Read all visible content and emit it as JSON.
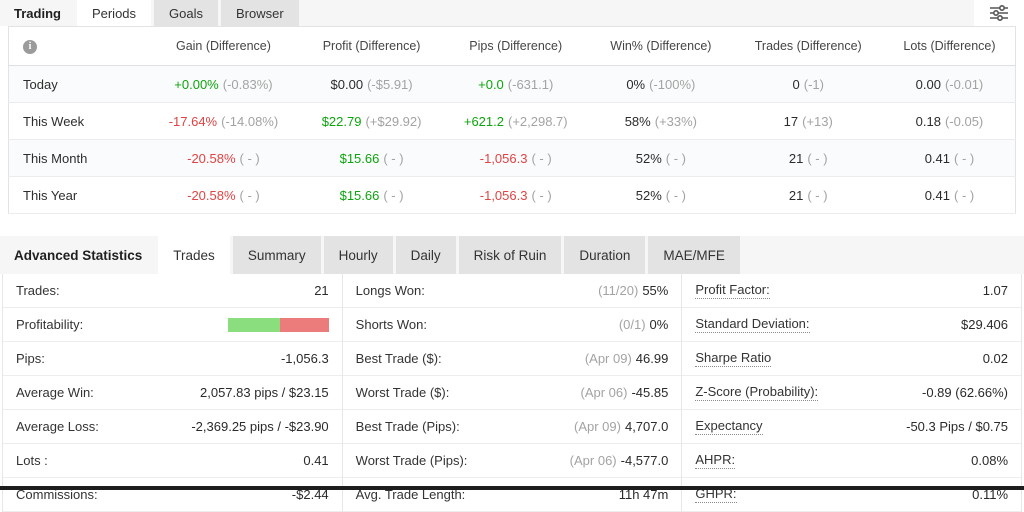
{
  "colors": {
    "green": "#0da50d",
    "red": "#e04343",
    "muted": "#a3a3a3",
    "bar_green": "#8ade7e",
    "bar_red": "#ec7b7b"
  },
  "trading": {
    "title": "Trading",
    "tabs": [
      {
        "label": "Periods",
        "active": true
      },
      {
        "label": "Goals",
        "active": false
      },
      {
        "label": "Browser",
        "active": false
      }
    ],
    "filter_icon": "sliders-icon",
    "table": {
      "info_glyph": "i",
      "headers": [
        "Gain (Difference)",
        "Profit (Difference)",
        "Pips (Difference)",
        "Win% (Difference)",
        "Trades (Difference)",
        "Lots (Difference)"
      ],
      "rows": [
        {
          "label": "Today",
          "cells": [
            {
              "main": "+0.00%",
              "color": "green",
              "diff": "(-0.83%)"
            },
            {
              "main": "$0.00",
              "color": "dark",
              "diff": "(-$5.91)"
            },
            {
              "main": "+0.0",
              "color": "green",
              "diff": "(-631.1)"
            },
            {
              "main": "0%",
              "color": "dark",
              "diff": "(-100%)"
            },
            {
              "main": "0",
              "color": "dark",
              "diff": "(-1)"
            },
            {
              "main": "0.00",
              "color": "dark",
              "diff": "(-0.01)"
            }
          ]
        },
        {
          "label": "This Week",
          "cells": [
            {
              "main": "-17.64%",
              "color": "red",
              "diff": "(-14.08%)"
            },
            {
              "main": "$22.79",
              "color": "green",
              "diff": "(+$29.92)"
            },
            {
              "main": "+621.2",
              "color": "green",
              "diff": "(+2,298.7)"
            },
            {
              "main": "58%",
              "color": "dark",
              "diff": "(+33%)"
            },
            {
              "main": "17",
              "color": "dark",
              "diff": "(+13)"
            },
            {
              "main": "0.18",
              "color": "dark",
              "diff": "(-0.05)"
            }
          ]
        },
        {
          "label": "This Month",
          "cells": [
            {
              "main": "-20.58%",
              "color": "red",
              "diff": "( - )"
            },
            {
              "main": "$15.66",
              "color": "green",
              "diff": "( - )"
            },
            {
              "main": "-1,056.3",
              "color": "red",
              "diff": "( - )"
            },
            {
              "main": "52%",
              "color": "dark",
              "diff": "( - )"
            },
            {
              "main": "21",
              "color": "dark",
              "diff": "( - )"
            },
            {
              "main": "0.41",
              "color": "dark",
              "diff": "( - )"
            }
          ]
        },
        {
          "label": "This Year",
          "cells": [
            {
              "main": "-20.58%",
              "color": "red",
              "diff": "( - )"
            },
            {
              "main": "$15.66",
              "color": "green",
              "diff": "( - )"
            },
            {
              "main": "-1,056.3",
              "color": "red",
              "diff": "( - )"
            },
            {
              "main": "52%",
              "color": "dark",
              "diff": "( - )"
            },
            {
              "main": "21",
              "color": "dark",
              "diff": "( - )"
            },
            {
              "main": "0.41",
              "color": "dark",
              "diff": "( - )"
            }
          ]
        }
      ]
    }
  },
  "advanced": {
    "title": "Advanced Statistics",
    "tabs": [
      {
        "label": "Trades",
        "active": true
      },
      {
        "label": "Summary",
        "active": false
      },
      {
        "label": "Hourly",
        "active": false
      },
      {
        "label": "Daily",
        "active": false
      },
      {
        "label": "Risk of Ruin",
        "active": false
      },
      {
        "label": "Duration",
        "active": false
      },
      {
        "label": "MAE/MFE",
        "active": false
      }
    ],
    "columns": [
      {
        "rows": [
          {
            "label": "Trades:",
            "value": "21"
          },
          {
            "label": "Profitability:",
            "bar": {
              "green_pct": 52,
              "red_pct": 48
            }
          },
          {
            "label": "Pips:",
            "value": "-1,056.3"
          },
          {
            "label": "Average Win:",
            "value": "2,057.83 pips / $23.15"
          },
          {
            "label": "Average Loss:",
            "value": "-2,369.25 pips / -$23.90"
          },
          {
            "label": "Lots :",
            "value": "0.41"
          },
          {
            "label": "Commissions:",
            "value": "-$2.44"
          }
        ]
      },
      {
        "rows": [
          {
            "label": "Longs Won:",
            "prefix": "(11/20)",
            "value": "55%"
          },
          {
            "label": "Shorts Won:",
            "prefix": "(0/1)",
            "value": "0%"
          },
          {
            "label": "Best Trade ($):",
            "prefix": "(Apr 09)",
            "value": "46.99"
          },
          {
            "label": "Worst Trade ($):",
            "prefix": "(Apr 06)",
            "value": "-45.85"
          },
          {
            "label": "Best Trade (Pips):",
            "prefix": "(Apr 09)",
            "value": "4,707.0"
          },
          {
            "label": "Worst Trade (Pips):",
            "prefix": "(Apr 06)",
            "value": "-4,577.0"
          },
          {
            "label": "Avg. Trade Length:",
            "value": "11h 47m"
          }
        ]
      },
      {
        "rows": [
          {
            "label": "Profit Factor:",
            "underline": true,
            "value": "1.07"
          },
          {
            "label": "Standard Deviation:",
            "underline": true,
            "value": "$29.406"
          },
          {
            "label": "Sharpe Ratio",
            "underline": true,
            "value": "0.02"
          },
          {
            "label": "Z-Score (Probability):",
            "underline": true,
            "value": "-0.89 (62.66%)"
          },
          {
            "label": "Expectancy",
            "underline": true,
            "value": "-50.3 Pips / $0.75"
          },
          {
            "label": "AHPR:",
            "underline": true,
            "value": "0.08%"
          },
          {
            "label": "GHPR:",
            "underline": true,
            "value": "0.11%"
          }
        ]
      }
    ]
  }
}
